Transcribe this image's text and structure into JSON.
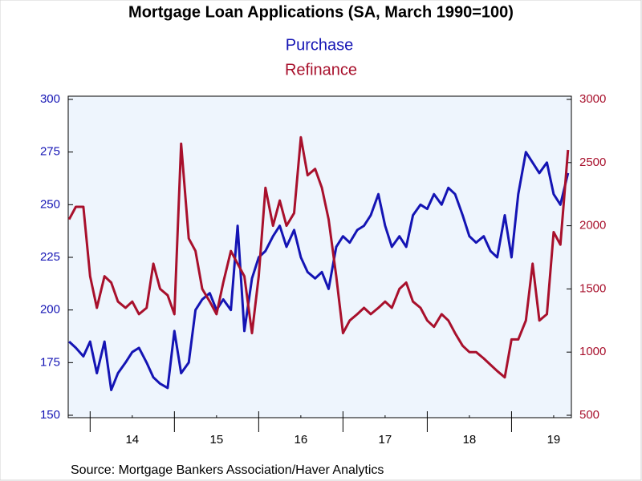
{
  "chart_data": {
    "type": "line",
    "title": "Mortgage Loan Applications (SA, March 1990=100)",
    "source": "Source:  Mortgage Bankers Association/Haver Analytics",
    "x": [
      2013.75,
      2013.83,
      2013.92,
      2014.0,
      2014.08,
      2014.17,
      2014.25,
      2014.33,
      2014.42,
      2014.5,
      2014.58,
      2014.67,
      2014.75,
      2014.83,
      2014.92,
      2015.0,
      2015.08,
      2015.17,
      2015.25,
      2015.33,
      2015.42,
      2015.5,
      2015.58,
      2015.67,
      2015.75,
      2015.83,
      2015.92,
      2016.0,
      2016.08,
      2016.17,
      2016.25,
      2016.33,
      2016.42,
      2016.5,
      2016.58,
      2016.67,
      2016.75,
      2016.83,
      2016.92,
      2017.0,
      2017.08,
      2017.17,
      2017.25,
      2017.33,
      2017.42,
      2017.5,
      2017.58,
      2017.67,
      2017.75,
      2017.83,
      2017.92,
      2018.0,
      2018.08,
      2018.17,
      2018.25,
      2018.33,
      2018.42,
      2018.5,
      2018.58,
      2018.67,
      2018.75,
      2018.83,
      2018.92,
      2019.0,
      2019.08,
      2019.17,
      2019.25,
      2019.33,
      2019.42,
      2019.5,
      2019.58,
      2019.67
    ],
    "series": [
      {
        "name": "Purchase",
        "color": "#1414b4",
        "axis": "y",
        "values": [
          185,
          182,
          178,
          185,
          170,
          185,
          162,
          170,
          175,
          180,
          182,
          175,
          168,
          165,
          163,
          190,
          170,
          175,
          200,
          205,
          208,
          200,
          205,
          200,
          240,
          190,
          215,
          225,
          228,
          235,
          240,
          230,
          238,
          225,
          218,
          215,
          218,
          210,
          230,
          235,
          232,
          238,
          240,
          245,
          255,
          240,
          230,
          235,
          230,
          245,
          250,
          248,
          255,
          250,
          258,
          255,
          245,
          235,
          232,
          235,
          228,
          225,
          245,
          225,
          255,
          275,
          270,
          265,
          270,
          255,
          250,
          265
        ]
      },
      {
        "name": "Refinance",
        "color": "#a8102c",
        "axis": "y2",
        "values": [
          2050,
          2150,
          2150,
          1600,
          1350,
          1600,
          1550,
          1400,
          1350,
          1400,
          1300,
          1350,
          1700,
          1500,
          1450,
          1300,
          2650,
          1900,
          1800,
          1500,
          1400,
          1300,
          1550,
          1800,
          1700,
          1600,
          1150,
          1600,
          2300,
          2000,
          2200,
          2000,
          2100,
          2700,
          2400,
          2450,
          2300,
          2050,
          1600,
          1150,
          1250,
          1300,
          1350,
          1300,
          1350,
          1400,
          1350,
          1500,
          1550,
          1400,
          1350,
          1250,
          1200,
          1300,
          1250,
          1150,
          1050,
          1000,
          1000,
          950,
          900,
          850,
          800,
          1100,
          1100,
          1250,
          1700,
          1250,
          1300,
          1950,
          1850,
          2600
        ]
      }
    ],
    "xlim": [
      2013.74,
      2019.71
    ],
    "xticks": [
      {
        "value": 2014.5,
        "label": "14"
      },
      {
        "value": 2015.5,
        "label": "15"
      },
      {
        "value": 2016.5,
        "label": "16"
      },
      {
        "value": 2017.5,
        "label": "17"
      },
      {
        "value": 2018.5,
        "label": "18"
      },
      {
        "value": 2019.5,
        "label": "19"
      }
    ],
    "ylim": [
      150,
      300
    ],
    "yticks": [
      150,
      175,
      200,
      225,
      250,
      275,
      300
    ],
    "y2lim": [
      500,
      3000
    ],
    "y2ticks": [
      500,
      1000,
      1500,
      2000,
      2500,
      3000
    ]
  }
}
